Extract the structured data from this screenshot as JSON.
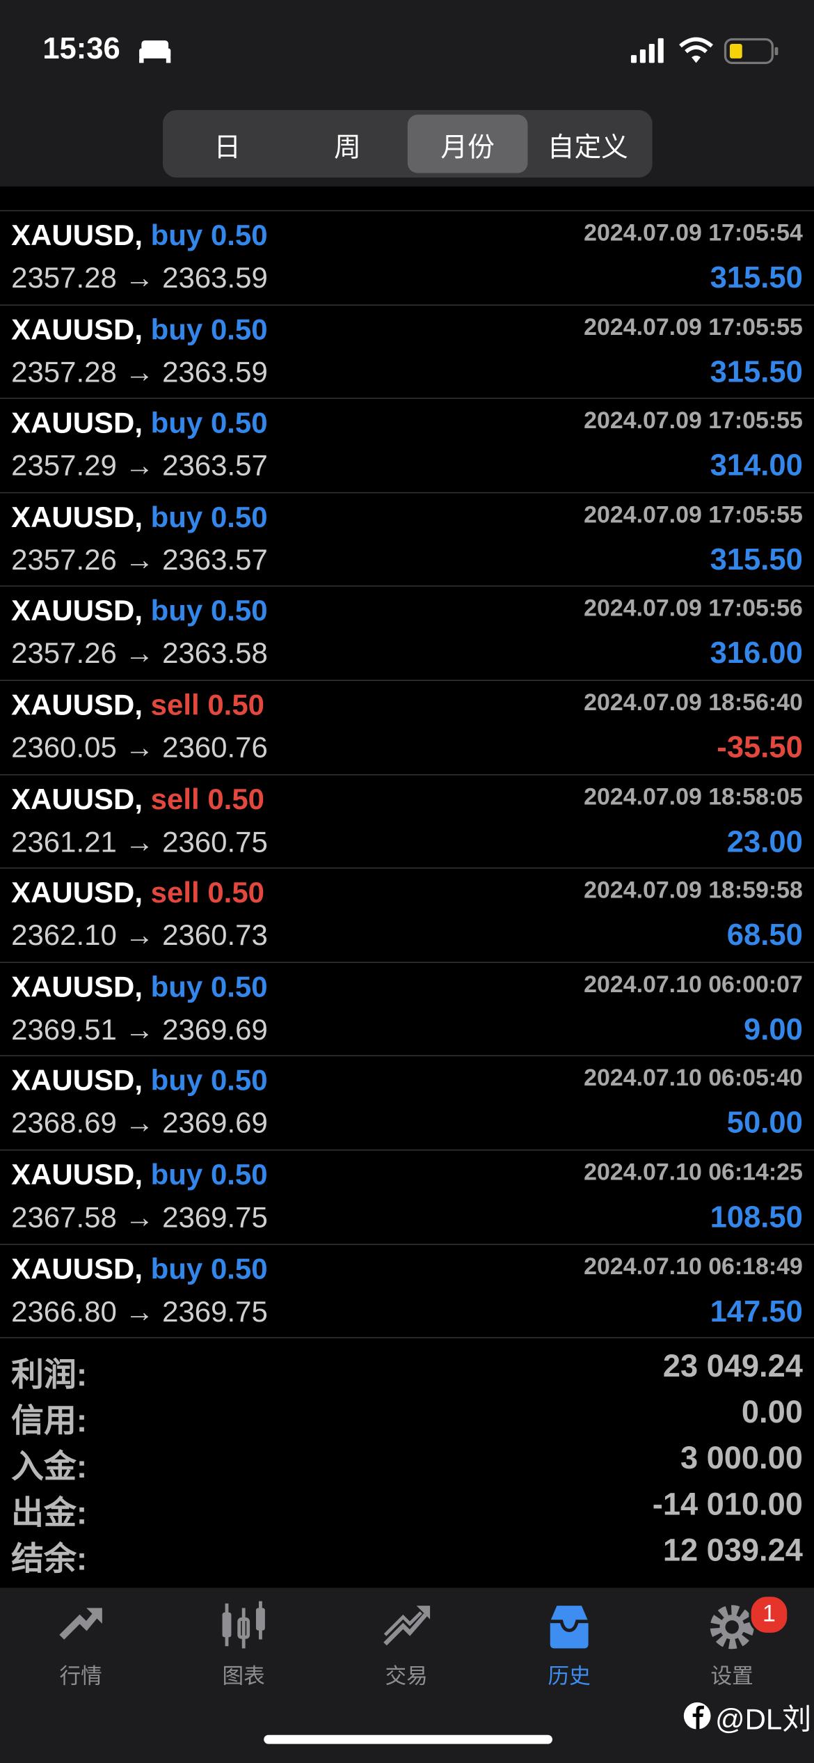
{
  "status_bar": {
    "time": "15:36"
  },
  "tabs": {
    "items": [
      "日",
      "周",
      "月份",
      "自定义"
    ],
    "active": 2
  },
  "arrow": "→",
  "trades": [
    {
      "symbol": "XAUUSD,",
      "side": "buy",
      "volume": "0.50",
      "time": "2024.07.09 17:05:54",
      "open": "2357.28",
      "close": "2363.59",
      "profit": "315.50"
    },
    {
      "symbol": "XAUUSD,",
      "side": "buy",
      "volume": "0.50",
      "time": "2024.07.09 17:05:55",
      "open": "2357.28",
      "close": "2363.59",
      "profit": "315.50"
    },
    {
      "symbol": "XAUUSD,",
      "side": "buy",
      "volume": "0.50",
      "time": "2024.07.09 17:05:55",
      "open": "2357.29",
      "close": "2363.57",
      "profit": "314.00"
    },
    {
      "symbol": "XAUUSD,",
      "side": "buy",
      "volume": "0.50",
      "time": "2024.07.09 17:05:55",
      "open": "2357.26",
      "close": "2363.57",
      "profit": "315.50"
    },
    {
      "symbol": "XAUUSD,",
      "side": "buy",
      "volume": "0.50",
      "time": "2024.07.09 17:05:56",
      "open": "2357.26",
      "close": "2363.58",
      "profit": "316.00"
    },
    {
      "symbol": "XAUUSD,",
      "side": "sell",
      "volume": "0.50",
      "time": "2024.07.09 18:56:40",
      "open": "2360.05",
      "close": "2360.76",
      "profit": "-35.50"
    },
    {
      "symbol": "XAUUSD,",
      "side": "sell",
      "volume": "0.50",
      "time": "2024.07.09 18:58:05",
      "open": "2361.21",
      "close": "2360.75",
      "profit": "23.00"
    },
    {
      "symbol": "XAUUSD,",
      "side": "sell",
      "volume": "0.50",
      "time": "2024.07.09 18:59:58",
      "open": "2362.10",
      "close": "2360.73",
      "profit": "68.50"
    },
    {
      "symbol": "XAUUSD,",
      "side": "buy",
      "volume": "0.50",
      "time": "2024.07.10 06:00:07",
      "open": "2369.51",
      "close": "2369.69",
      "profit": "9.00"
    },
    {
      "symbol": "XAUUSD,",
      "side": "buy",
      "volume": "0.50",
      "time": "2024.07.10 06:05:40",
      "open": "2368.69",
      "close": "2369.69",
      "profit": "50.00"
    },
    {
      "symbol": "XAUUSD,",
      "side": "buy",
      "volume": "0.50",
      "time": "2024.07.10 06:14:25",
      "open": "2367.58",
      "close": "2369.75",
      "profit": "108.50"
    },
    {
      "symbol": "XAUUSD,",
      "side": "buy",
      "volume": "0.50",
      "time": "2024.07.10 06:18:49",
      "open": "2366.80",
      "close": "2369.75",
      "profit": "147.50"
    }
  ],
  "summary": [
    {
      "label": "利润:",
      "value": "23 049.24"
    },
    {
      "label": "信用:",
      "value": "0.00"
    },
    {
      "label": "入金:",
      "value": "3 000.00"
    },
    {
      "label": "出金:",
      "value": "-14 010.00"
    },
    {
      "label": "结余:",
      "value": "12 039.24"
    }
  ],
  "nav": {
    "items": [
      "行情",
      "图表",
      "交易",
      "历史",
      "设置"
    ],
    "active": 3,
    "badge": "1"
  },
  "watermark": "@DL刘"
}
